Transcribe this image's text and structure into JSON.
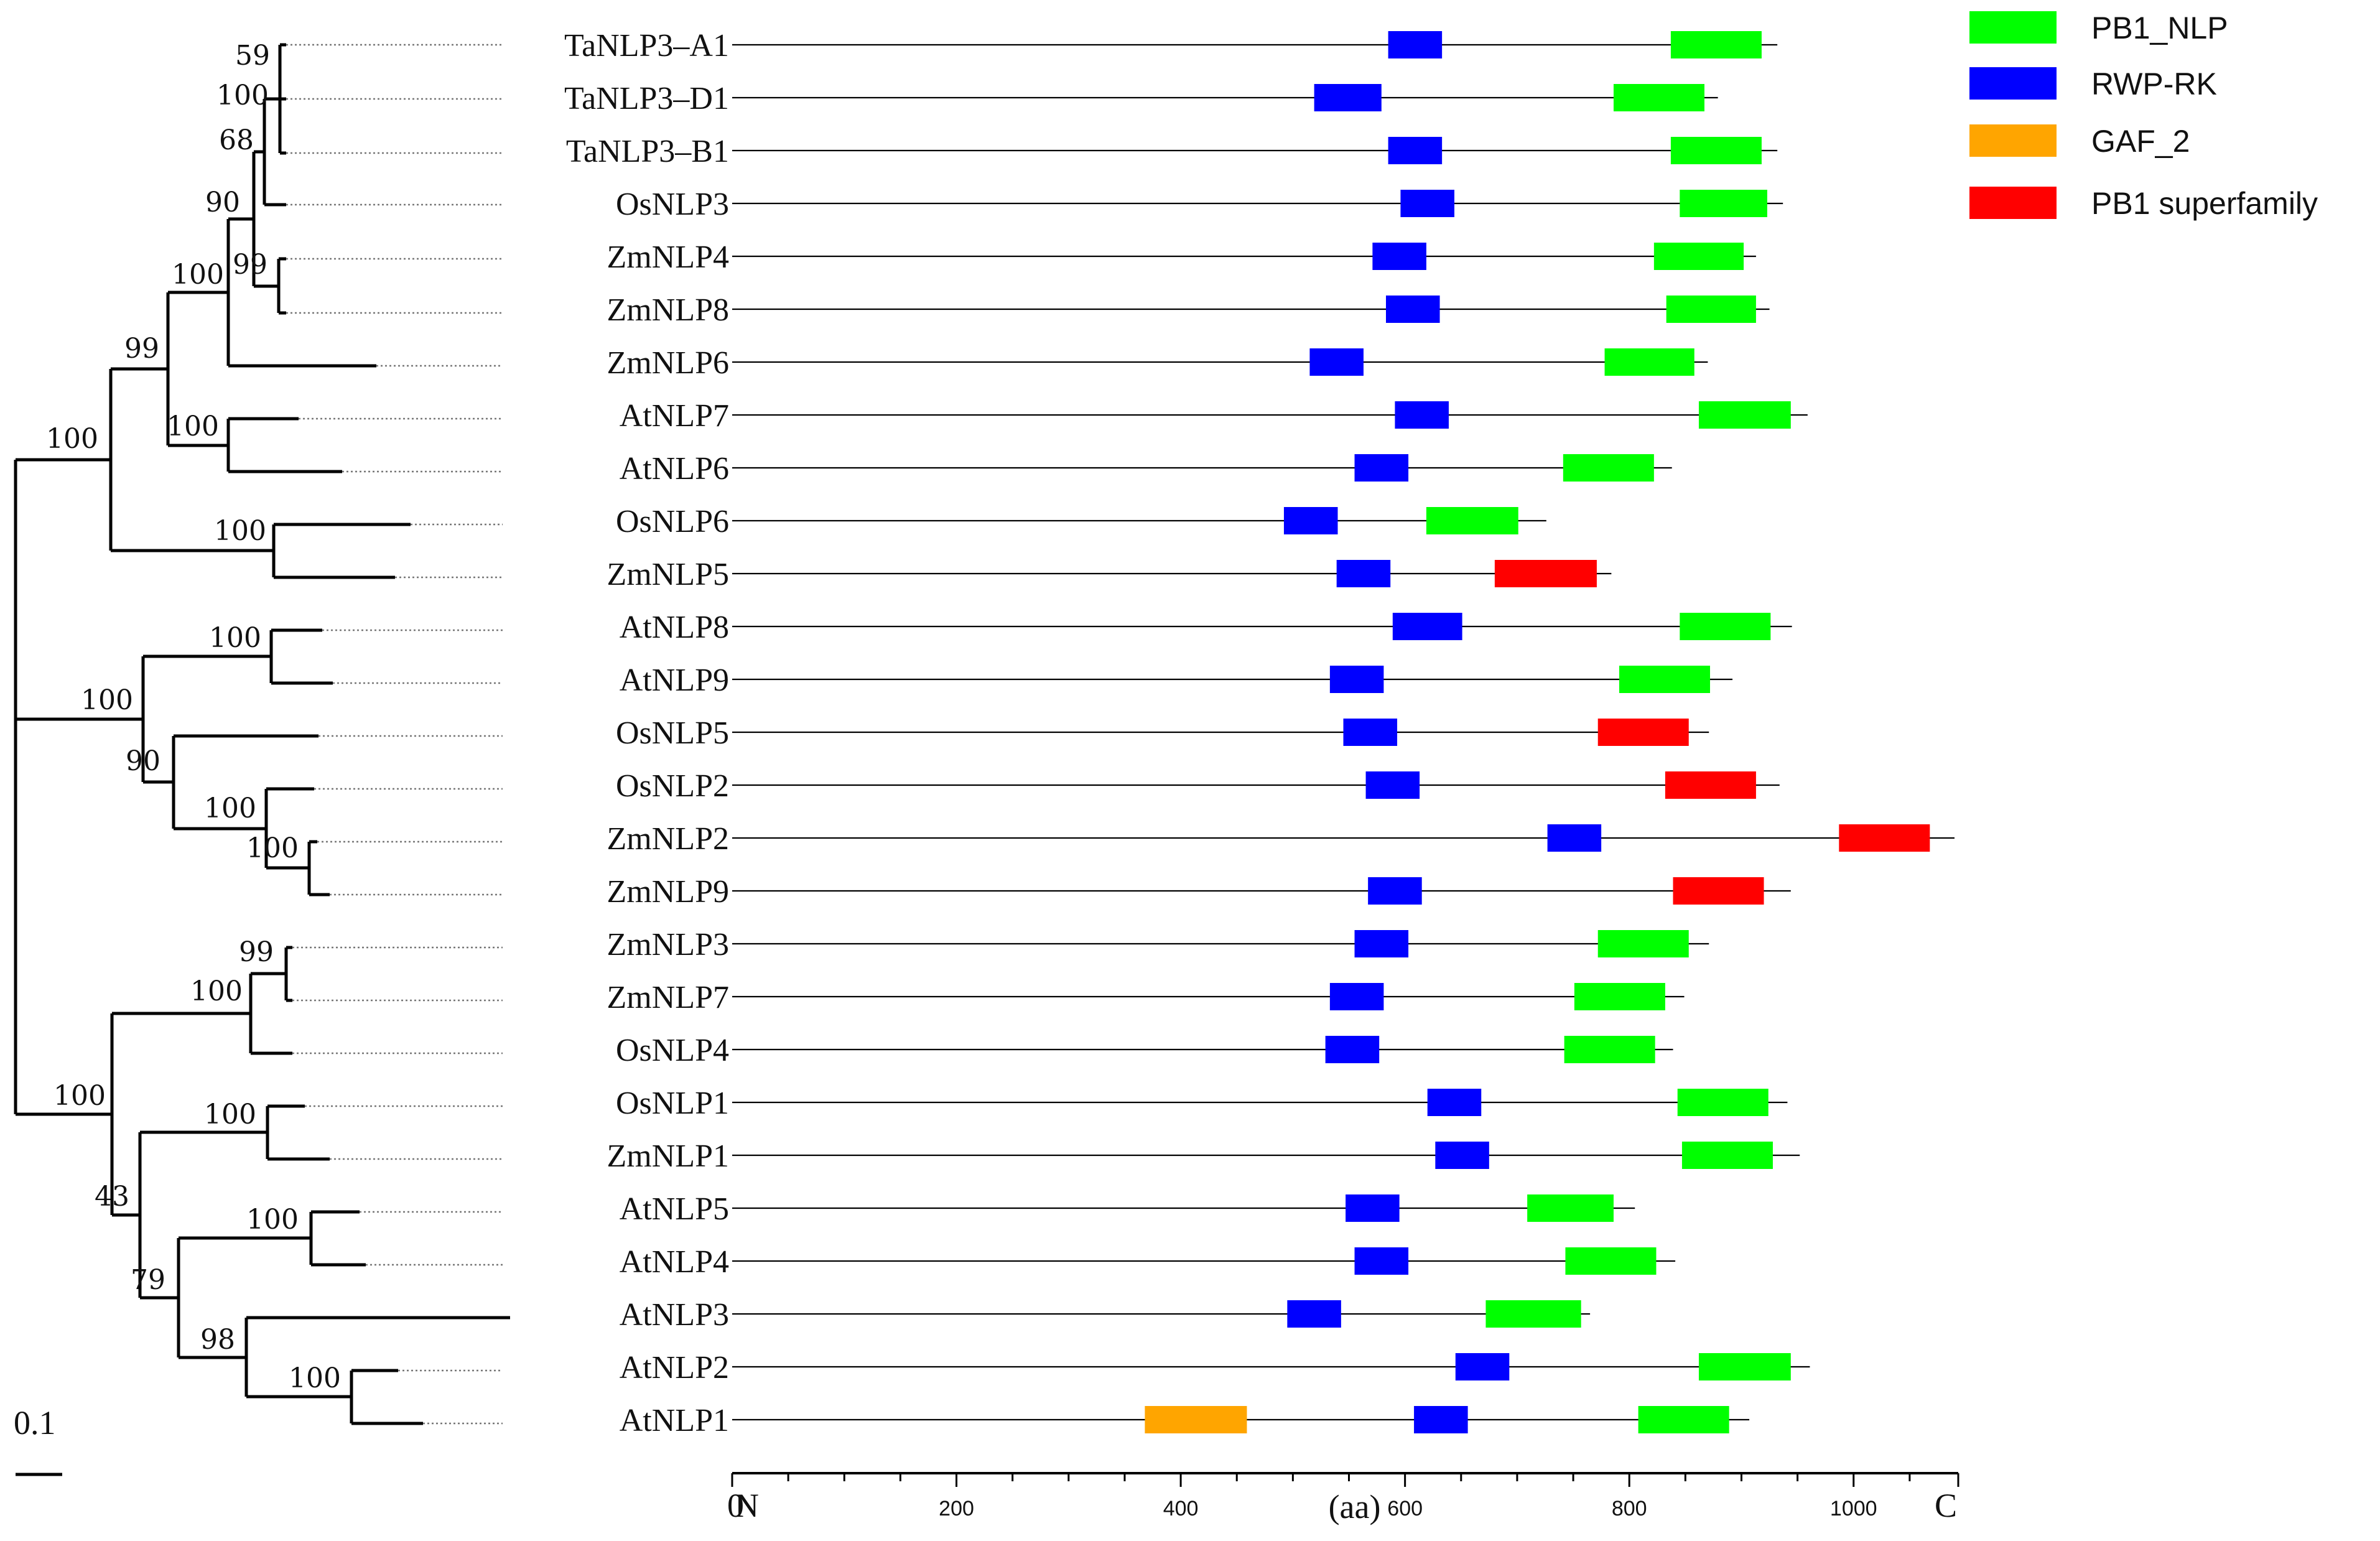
{
  "scale_bar": {
    "label": "0.1"
  },
  "legend": [
    {
      "name": "PB1_NLP",
      "color": "#00FF00"
    },
    {
      "name": "RWP-RK",
      "color": "#0000FF"
    },
    {
      "name": "GAF_2",
      "color": "#FFA500"
    },
    {
      "name": "PB1 superfamily",
      "color": "#FF0000"
    }
  ],
  "axis": {
    "start_label": "N",
    "end_label": "C",
    "unit_label": "(aa)",
    "zero_label": "0",
    "ticks": [
      200,
      400,
      600,
      800,
      1000
    ],
    "max": 1090
  },
  "proteins": [
    {
      "name": "TaNLP3–A1",
      "length": 932,
      "domains": [
        {
          "type": "RWP-RK",
          "start": 585,
          "end": 633
        },
        {
          "type": "PB1_NLP",
          "start": 837,
          "end": 918
        }
      ]
    },
    {
      "name": "TaNLP3–D1",
      "length": 879,
      "domains": [
        {
          "type": "RWP-RK",
          "start": 519,
          "end": 579
        },
        {
          "type": "PB1_NLP",
          "start": 786,
          "end": 867
        }
      ]
    },
    {
      "name": "TaNLP3–B1",
      "length": 932,
      "domains": [
        {
          "type": "RWP-RK",
          "start": 585,
          "end": 633
        },
        {
          "type": "PB1_NLP",
          "start": 837,
          "end": 918
        }
      ]
    },
    {
      "name": "OsNLP3",
      "length": 937,
      "domains": [
        {
          "type": "RWP-RK",
          "start": 596,
          "end": 644
        },
        {
          "type": "PB1_NLP",
          "start": 845,
          "end": 923
        }
      ]
    },
    {
      "name": "ZmNLP4",
      "length": 913,
      "domains": [
        {
          "type": "RWP-RK",
          "start": 571,
          "end": 619
        },
        {
          "type": "PB1_NLP",
          "start": 822,
          "end": 902
        }
      ]
    },
    {
      "name": "ZmNLP8",
      "length": 925,
      "domains": [
        {
          "type": "RWP-RK",
          "start": 583,
          "end": 631
        },
        {
          "type": "PB1_NLP",
          "start": 833,
          "end": 913
        }
      ]
    },
    {
      "name": "ZmNLP6",
      "length": 870,
      "domains": [
        {
          "type": "RWP-RK",
          "start": 515,
          "end": 563
        },
        {
          "type": "PB1_NLP",
          "start": 778,
          "end": 858
        }
      ]
    },
    {
      "name": "AtNLP7",
      "length": 959,
      "domains": [
        {
          "type": "RWP-RK",
          "start": 591,
          "end": 639
        },
        {
          "type": "PB1_NLP",
          "start": 862,
          "end": 944
        }
      ]
    },
    {
      "name": "AtNLP6",
      "length": 838,
      "domains": [
        {
          "type": "RWP-RK",
          "start": 555,
          "end": 603
        },
        {
          "type": "PB1_NLP",
          "start": 741,
          "end": 822
        }
      ]
    },
    {
      "name": "OsNLP6",
      "length": 726,
      "domains": [
        {
          "type": "RWP-RK",
          "start": 492,
          "end": 540
        },
        {
          "type": "PB1_NLP",
          "start": 619,
          "end": 701
        }
      ]
    },
    {
      "name": "ZmNLP5",
      "length": 784,
      "domains": [
        {
          "type": "RWP-RK",
          "start": 539,
          "end": 587
        },
        {
          "type": "PB1 superfamily",
          "start": 680,
          "end": 771
        }
      ]
    },
    {
      "name": "AtNLP8",
      "length": 945,
      "domains": [
        {
          "type": "RWP-RK",
          "start": 589,
          "end": 651
        },
        {
          "type": "PB1_NLP",
          "start": 845,
          "end": 926
        }
      ]
    },
    {
      "name": "AtNLP9",
      "length": 892,
      "domains": [
        {
          "type": "RWP-RK",
          "start": 533,
          "end": 581
        },
        {
          "type": "PB1_NLP",
          "start": 791,
          "end": 872
        }
      ]
    },
    {
      "name": "OsNLP5",
      "length": 871,
      "domains": [
        {
          "type": "RWP-RK",
          "start": 545,
          "end": 593
        },
        {
          "type": "PB1 superfamily",
          "start": 772,
          "end": 853
        }
      ]
    },
    {
      "name": "OsNLP2",
      "length": 934,
      "domains": [
        {
          "type": "RWP-RK",
          "start": 565,
          "end": 613
        },
        {
          "type": "PB1 superfamily",
          "start": 832,
          "end": 913
        }
      ]
    },
    {
      "name": "ZmNLP2",
      "length": 1090,
      "domains": [
        {
          "type": "RWP-RK",
          "start": 727,
          "end": 775
        },
        {
          "type": "PB1 superfamily",
          "start": 987,
          "end": 1068
        }
      ]
    },
    {
      "name": "ZmNLP9",
      "length": 944,
      "domains": [
        {
          "type": "RWP-RK",
          "start": 567,
          "end": 615
        },
        {
          "type": "PB1 superfamily",
          "start": 839,
          "end": 920
        }
      ]
    },
    {
      "name": "ZmNLP3",
      "length": 871,
      "domains": [
        {
          "type": "RWP-RK",
          "start": 555,
          "end": 603
        },
        {
          "type": "PB1_NLP",
          "start": 772,
          "end": 853
        }
      ]
    },
    {
      "name": "ZmNLP7",
      "length": 849,
      "domains": [
        {
          "type": "RWP-RK",
          "start": 533,
          "end": 581
        },
        {
          "type": "PB1_NLP",
          "start": 751,
          "end": 832
        }
      ]
    },
    {
      "name": "OsNLP4",
      "length": 839,
      "domains": [
        {
          "type": "RWP-RK",
          "start": 529,
          "end": 577
        },
        {
          "type": "PB1_NLP",
          "start": 742,
          "end": 823
        }
      ]
    },
    {
      "name": "OsNLP1",
      "length": 941,
      "domains": [
        {
          "type": "RWP-RK",
          "start": 620,
          "end": 668
        },
        {
          "type": "PB1_NLP",
          "start": 843,
          "end": 924
        }
      ]
    },
    {
      "name": "ZmNLP1",
      "length": 952,
      "domains": [
        {
          "type": "RWP-RK",
          "start": 627,
          "end": 675
        },
        {
          "type": "PB1_NLP",
          "start": 847,
          "end": 928
        }
      ]
    },
    {
      "name": "AtNLP5",
      "length": 805,
      "domains": [
        {
          "type": "RWP-RK",
          "start": 547,
          "end": 595
        },
        {
          "type": "PB1_NLP",
          "start": 709,
          "end": 786
        }
      ]
    },
    {
      "name": "AtNLP4",
      "length": 841,
      "domains": [
        {
          "type": "RWP-RK",
          "start": 555,
          "end": 603
        },
        {
          "type": "PB1_NLP",
          "start": 743,
          "end": 824
        }
      ]
    },
    {
      "name": "AtNLP3",
      "length": 765,
      "domains": [
        {
          "type": "RWP-RK",
          "start": 495,
          "end": 543
        },
        {
          "type": "PB1_NLP",
          "start": 672,
          "end": 757
        }
      ]
    },
    {
      "name": "AtNLP2",
      "length": 961,
      "domains": [
        {
          "type": "RWP-RK",
          "start": 645,
          "end": 693
        },
        {
          "type": "PB1_NLP",
          "start": 862,
          "end": 944
        }
      ]
    },
    {
      "name": "AtNLP1",
      "length": 907,
      "domains": [
        {
          "type": "GAF_2",
          "start": 368,
          "end": 459
        },
        {
          "type": "RWP-RK",
          "start": 608,
          "end": 656
        },
        {
          "type": "PB1_NLP",
          "start": 808,
          "end": 889
        }
      ]
    }
  ],
  "bootstrap_values": [
    "59",
    "100",
    "68",
    "90",
    "99",
    "100",
    "99",
    "100",
    "100",
    "100",
    "100",
    "100",
    "90",
    "100",
    "100",
    "99",
    "100",
    "100",
    "100",
    "43",
    "100",
    "79",
    "98",
    "100"
  ]
}
